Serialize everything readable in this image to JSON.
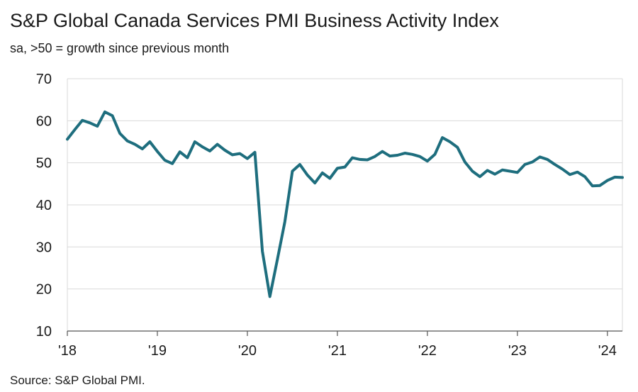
{
  "title": "S&P Global Canada Services PMI Business Activity Index",
  "subtitle": "sa, >50 = growth since previous month",
  "source": "Source: S&P Global PMI.",
  "chart_data": {
    "type": "line",
    "y_ticks": [
      10,
      20,
      30,
      40,
      50,
      60,
      70
    ],
    "ylim": [
      10,
      70
    ],
    "x_ticks": [
      {
        "label": "'18",
        "year": 2018
      },
      {
        "label": "'19",
        "year": 2019
      },
      {
        "label": "'20",
        "year": 2020
      },
      {
        "label": "'21",
        "year": 2021
      },
      {
        "label": "'22",
        "year": 2022
      },
      {
        "label": "'23",
        "year": 2023
      },
      {
        "label": "'24",
        "year": 2024
      }
    ],
    "x_start": "2018-01",
    "x_end": "2024-03",
    "grid": true,
    "line_color": "#1e6e7e",
    "series": [
      {
        "values": [
          [
            "2018-01",
            55.6
          ],
          [
            "2018-02",
            57.9
          ],
          [
            "2018-03",
            60.1
          ],
          [
            "2018-04",
            59.5
          ],
          [
            "2018-05",
            58.7
          ],
          [
            "2018-06",
            62.1
          ],
          [
            "2018-07",
            61.2
          ],
          [
            "2018-08",
            57.0
          ],
          [
            "2018-09",
            55.2
          ],
          [
            "2018-10",
            54.4
          ],
          [
            "2018-11",
            53.3
          ],
          [
            "2018-12",
            55.0
          ],
          [
            "2019-01",
            52.7
          ],
          [
            "2019-02",
            50.6
          ],
          [
            "2019-03",
            49.8
          ],
          [
            "2019-04",
            52.6
          ],
          [
            "2019-05",
            51.2
          ],
          [
            "2019-06",
            55.0
          ],
          [
            "2019-07",
            53.8
          ],
          [
            "2019-08",
            52.8
          ],
          [
            "2019-09",
            54.4
          ],
          [
            "2019-10",
            53.0
          ],
          [
            "2019-11",
            51.9
          ],
          [
            "2019-12",
            52.2
          ],
          [
            "2020-01",
            51.0
          ],
          [
            "2020-02",
            52.5
          ],
          [
            "2020-03",
            29.0
          ],
          [
            "2020-04",
            18.2
          ],
          [
            "2020-05",
            27.0
          ],
          [
            "2020-06",
            36.0
          ],
          [
            "2020-07",
            48.0
          ],
          [
            "2020-08",
            49.6
          ],
          [
            "2020-09",
            47.1
          ],
          [
            "2020-10",
            45.2
          ],
          [
            "2020-11",
            47.6
          ],
          [
            "2020-12",
            46.3
          ],
          [
            "2021-01",
            48.7
          ],
          [
            "2021-02",
            49.0
          ],
          [
            "2021-03",
            51.2
          ],
          [
            "2021-04",
            50.8
          ],
          [
            "2021-05",
            50.7
          ],
          [
            "2021-06",
            51.5
          ],
          [
            "2021-07",
            52.7
          ],
          [
            "2021-08",
            51.6
          ],
          [
            "2021-09",
            51.8
          ],
          [
            "2021-10",
            52.3
          ],
          [
            "2021-11",
            52.0
          ],
          [
            "2021-12",
            51.5
          ],
          [
            "2022-01",
            50.4
          ],
          [
            "2022-02",
            52.0
          ],
          [
            "2022-03",
            56.0
          ],
          [
            "2022-04",
            55.0
          ],
          [
            "2022-05",
            53.7
          ],
          [
            "2022-06",
            50.2
          ],
          [
            "2022-07",
            48.0
          ],
          [
            "2022-08",
            46.7
          ],
          [
            "2022-09",
            48.2
          ],
          [
            "2022-10",
            47.3
          ],
          [
            "2022-11",
            48.3
          ],
          [
            "2022-12",
            48.0
          ],
          [
            "2023-01",
            47.7
          ],
          [
            "2023-02",
            49.6
          ],
          [
            "2023-03",
            50.2
          ],
          [
            "2023-04",
            51.4
          ],
          [
            "2023-05",
            50.8
          ],
          [
            "2023-06",
            49.6
          ],
          [
            "2023-07",
            48.5
          ],
          [
            "2023-08",
            47.2
          ],
          [
            "2023-09",
            47.8
          ],
          [
            "2023-10",
            46.7
          ],
          [
            "2023-11",
            44.5
          ],
          [
            "2023-12",
            44.6
          ],
          [
            "2024-01",
            45.8
          ],
          [
            "2024-02",
            46.6
          ],
          [
            "2024-03",
            46.5
          ]
        ]
      }
    ]
  }
}
